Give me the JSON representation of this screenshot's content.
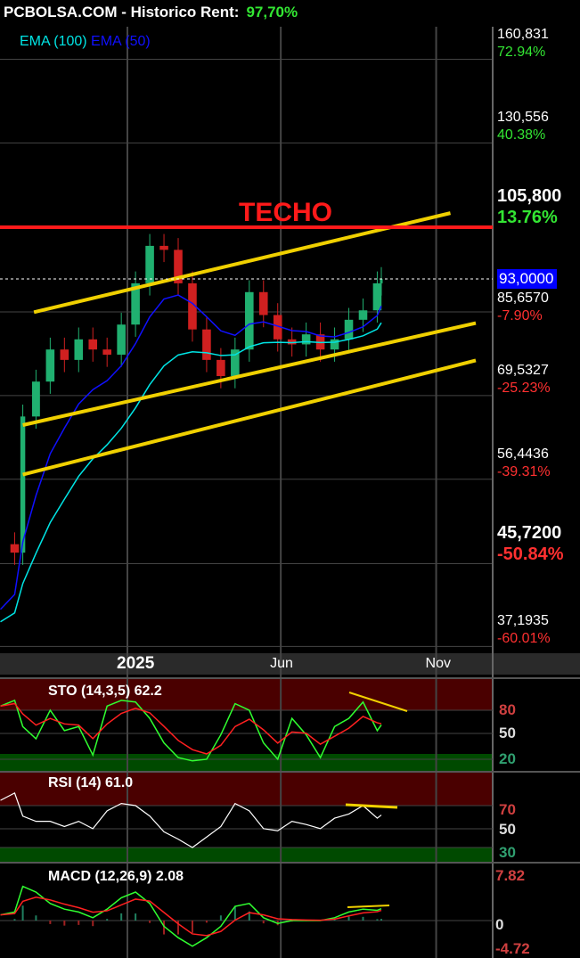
{
  "header": {
    "title": "PCBOLSA.COM - Historico  Rent:",
    "rent": "97,70%"
  },
  "legend": [
    {
      "label": "EMA (100)",
      "color": "#00e5e5"
    },
    {
      "label": "EMA (50)",
      "color": "#1010ff"
    }
  ],
  "annotation": {
    "label": "TECHO",
    "color": "#ff1a1a"
  },
  "colors": {
    "up": "#20b070",
    "down": "#d02020",
    "trend": "#f0d000",
    "grid": "#444444",
    "overbought": "#4a0000",
    "oversold": "#004a00"
  },
  "chart_data": {
    "type": "candlestick",
    "yscale": "log",
    "x_ticks": [
      {
        "label": "2025",
        "date": "2025-01-01"
      },
      {
        "label": "Jun",
        "date": "2025-06-01"
      },
      {
        "label": "Nov",
        "date": "2025-11-01"
      }
    ],
    "y_axis_labels": [
      {
        "price": 160.831,
        "label": "160,831",
        "pct": "72.94%"
      },
      {
        "price": 130.556,
        "label": "130,556",
        "pct": "40.38%"
      },
      {
        "price": 105.8,
        "label": "105,800",
        "pct": "13.76%",
        "bold": true
      },
      {
        "price": 85.657,
        "label": "85,6570",
        "pct": "-7.90%"
      },
      {
        "price": 69.5327,
        "label": "69,5327",
        "pct": "-25.23%"
      },
      {
        "price": 56.4436,
        "label": "56,4436",
        "pct": "-39.31%"
      },
      {
        "price": 45.72,
        "label": "45,7200",
        "pct": "-50.84%",
        "bold": true
      },
      {
        "price": 37.1935,
        "label": "37,1935",
        "pct": "-60.01%"
      }
    ],
    "last_price": {
      "value": 93.0,
      "label": "93,0000"
    },
    "resistance": 105.8,
    "dates": [
      "2024-08-29",
      "2024-09-12",
      "2024-09-20",
      "2024-10-03",
      "2024-10-17",
      "2024-10-31",
      "2024-11-14",
      "2024-11-28",
      "2024-12-12",
      "2024-12-26",
      "2025-01-09",
      "2025-01-23",
      "2025-02-06",
      "2025-02-20",
      "2025-03-06",
      "2025-03-20",
      "2025-04-03",
      "2025-04-17",
      "2025-05-01",
      "2025-05-15",
      "2025-05-29",
      "2025-06-12",
      "2025-06-26",
      "2025-07-10",
      "2025-07-24",
      "2025-08-07",
      "2025-08-21",
      "2025-09-04",
      "2025-09-08"
    ],
    "close": [
      48,
      47,
      66,
      72,
      78,
      76,
      80,
      78,
      77,
      83,
      92,
      101,
      100,
      92,
      82,
      76,
      73,
      78,
      90,
      85,
      80,
      79,
      81,
      78,
      80,
      84,
      86,
      92,
      93
    ],
    "trendlines": [
      {
        "from": [
          "2024-10-01",
          85.6
        ],
        "to": [
          "2025-11-15",
          109.6
        ]
      },
      {
        "from": [
          "2024-09-20",
          64.6
        ],
        "to": [
          "2025-12-10",
          83.3
        ]
      },
      {
        "from": [
          "2024-09-20",
          57.1
        ],
        "to": [
          "2025-12-10",
          75.9
        ]
      }
    ],
    "indicators": {
      "sto": {
        "label": "STO (14,3,5) 62.2",
        "levels": [
          80,
          50,
          20
        ],
        "values": [
          85,
          92,
          60,
          45,
          80,
          55,
          60,
          25,
          85,
          92,
          90,
          70,
          40,
          22,
          18,
          20,
          50,
          88,
          80,
          40,
          20,
          70,
          50,
          22,
          60,
          70,
          90,
          55,
          62
        ]
      },
      "rsi": {
        "label": "RSI (14) 61.0",
        "levels": [
          70,
          50,
          30
        ],
        "values": [
          75,
          82,
          60,
          55,
          55,
          50,
          55,
          48,
          65,
          72,
          70,
          60,
          45,
          38,
          30,
          40,
          50,
          72,
          65,
          48,
          46,
          55,
          52,
          48,
          58,
          62,
          70,
          58,
          61
        ]
      },
      "macd": {
        "label": "MACD (12,26,9) 2.08",
        "levels": [
          "7.82",
          "0",
          "-4.72"
        ],
        "values": [
          1,
          1.5,
          6,
          5,
          3,
          2,
          1.5,
          0.5,
          2,
          4,
          5,
          3,
          -1,
          -3,
          -4.5,
          -3,
          -1,
          2.5,
          3,
          0.5,
          -0.5,
          0,
          0,
          0,
          0.5,
          1.5,
          2,
          1.8,
          2.08
        ]
      }
    }
  }
}
